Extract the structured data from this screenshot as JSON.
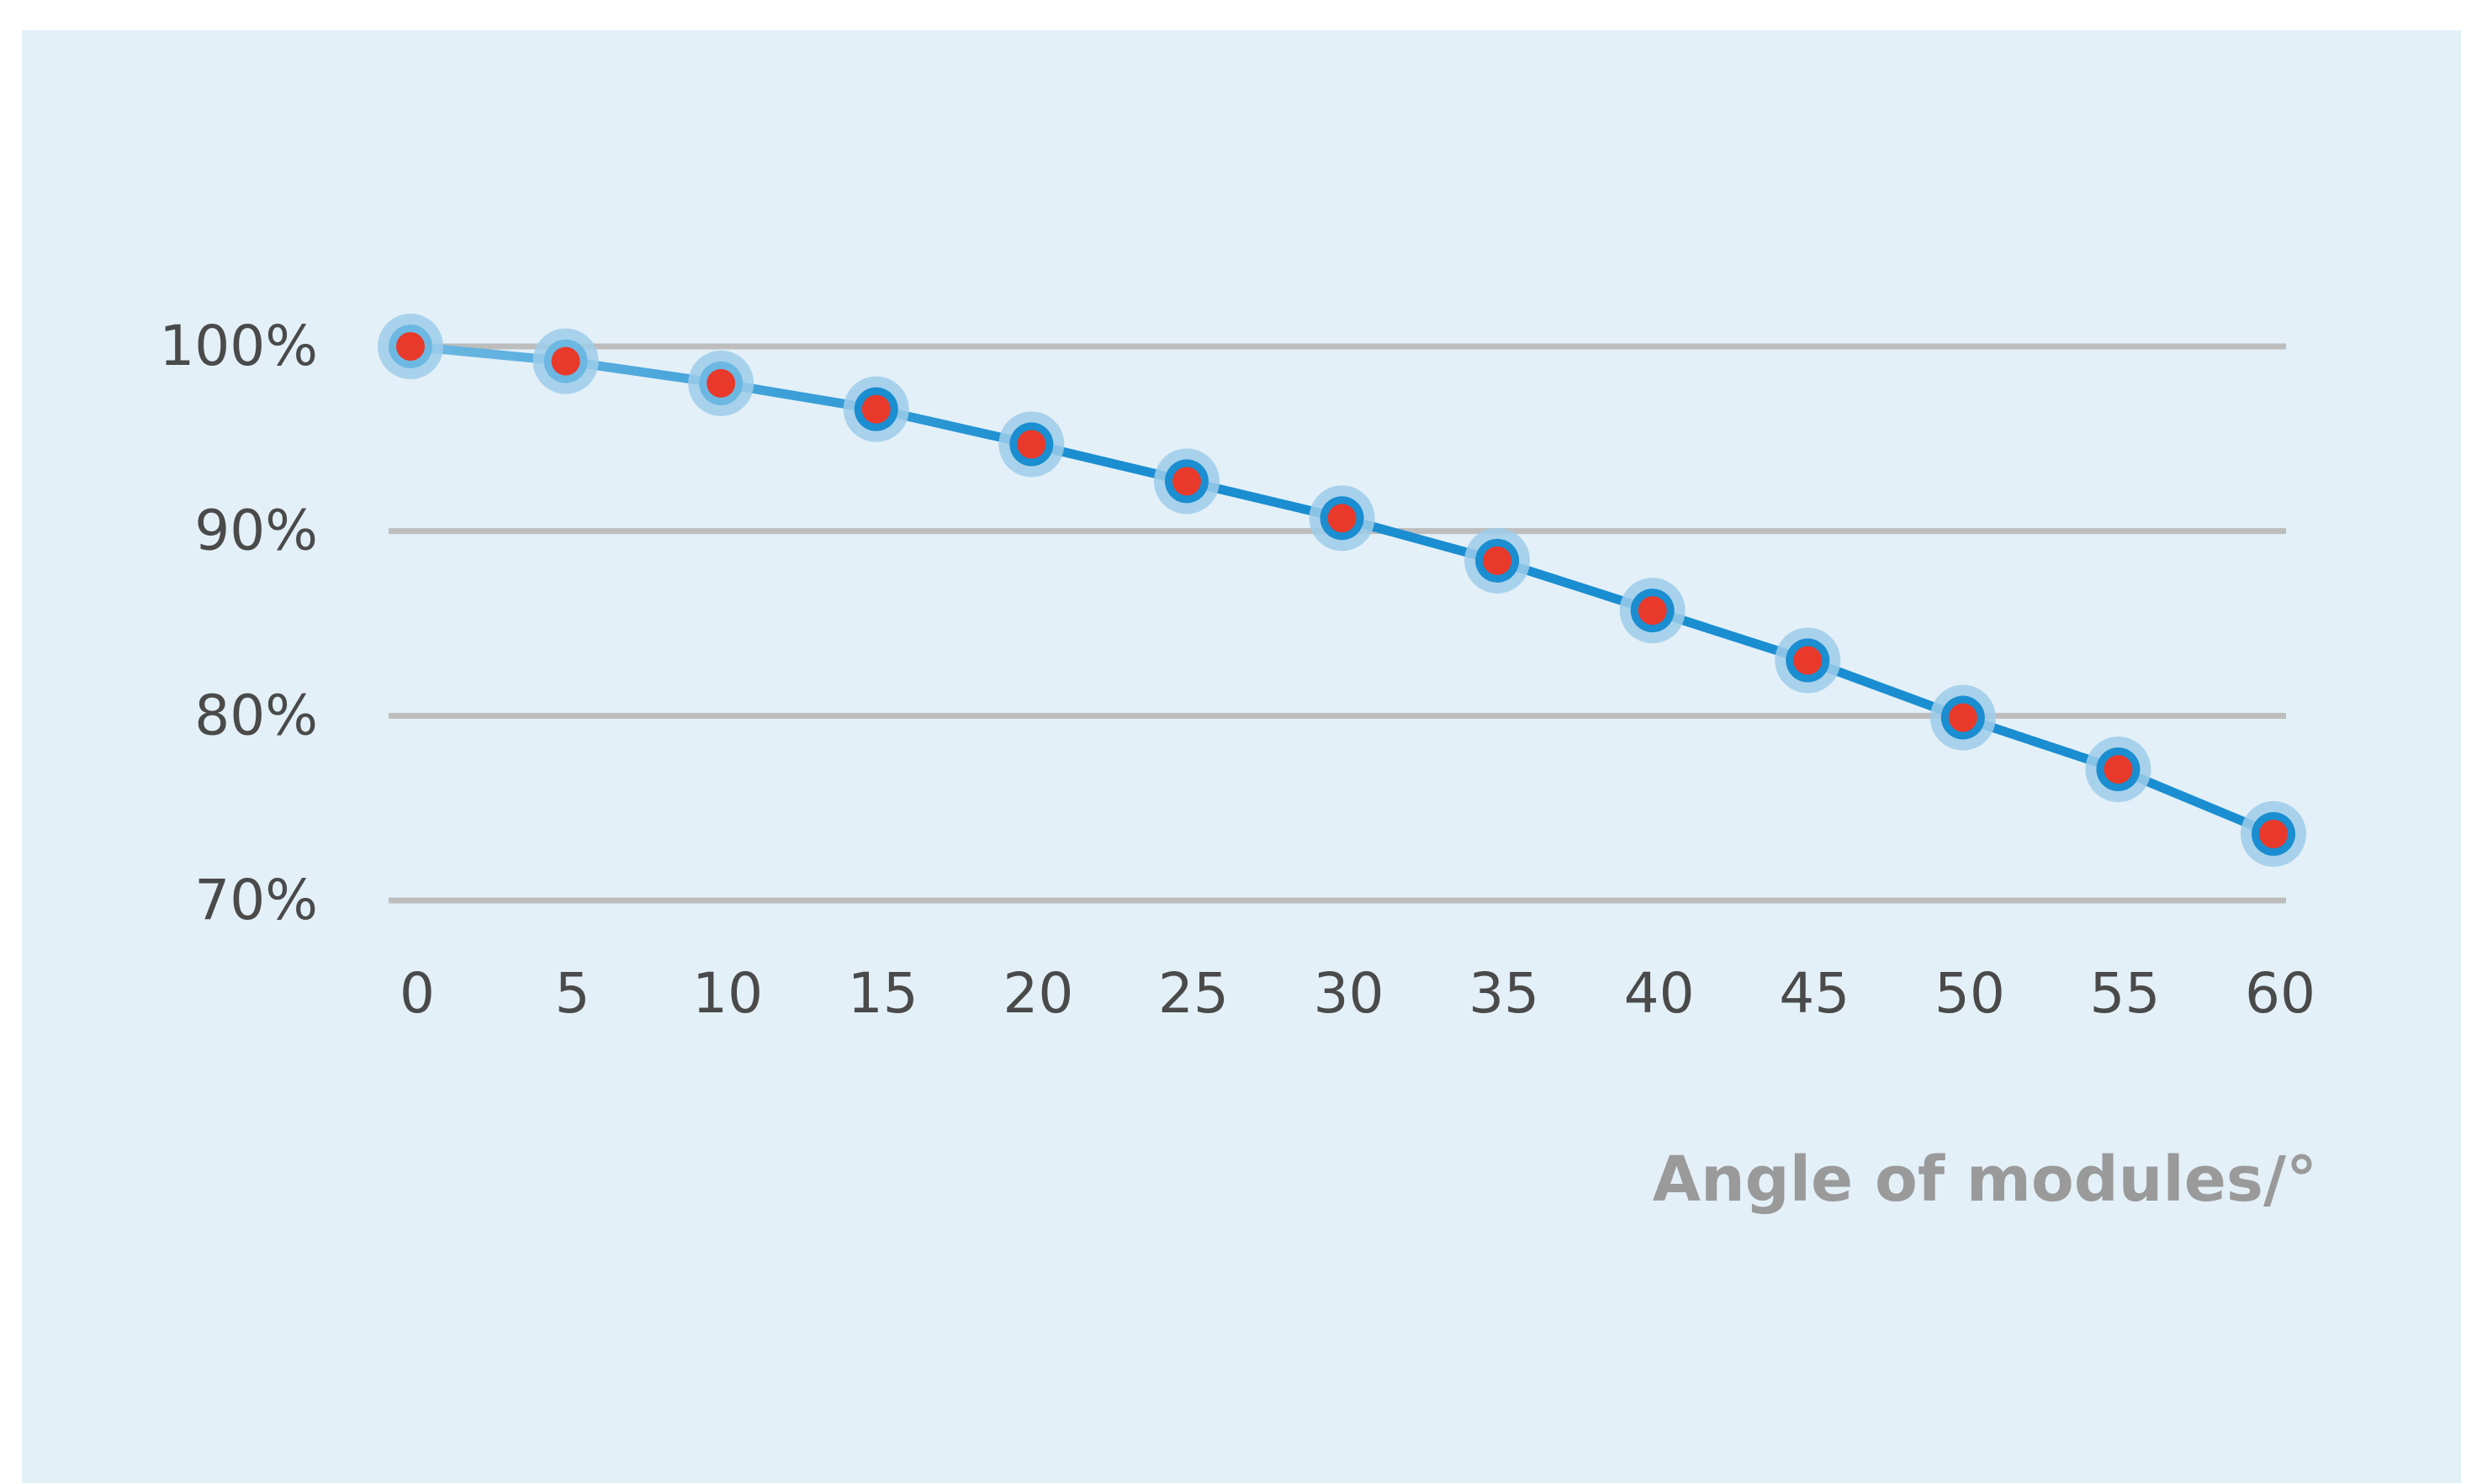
{
  "chart_data": {
    "type": "line",
    "title": "",
    "xlabel": "Angle of modules/°",
    "ylabel": "",
    "x": [
      0,
      5,
      10,
      15,
      20,
      25,
      30,
      35,
      40,
      45,
      50,
      55,
      60
    ],
    "x_tick_labels": [
      "0",
      "5",
      "10",
      "15",
      "20",
      "25",
      "30",
      "35",
      "40",
      "45",
      "50",
      "55",
      "60"
    ],
    "y_ticks": [
      70,
      80,
      90,
      100
    ],
    "y_tick_labels": [
      "70%",
      "80%",
      "90%",
      "100%"
    ],
    "series": [
      {
        "values": [
          100,
          99.2,
          98.0,
          96.6,
          94.7,
          92.7,
          90.7,
          88.4,
          85.7,
          83.0,
          79.9,
          77.1,
          73.6
        ]
      }
    ],
    "ylim": [
      70,
      100
    ],
    "xlim": [
      0,
      60
    ],
    "grid": "horizontal",
    "legend": "none",
    "colors": {
      "background": "#e3f0f8",
      "gridline": "#bdbdbd",
      "line_light": "#6cb8e2",
      "line_dark": "#1a8ed0",
      "marker_halo": "#9dcdea",
      "marker_dot": "#e8392b",
      "tick_text": "#4a4a4a",
      "axis_title_text": "#9a9a9a"
    }
  }
}
